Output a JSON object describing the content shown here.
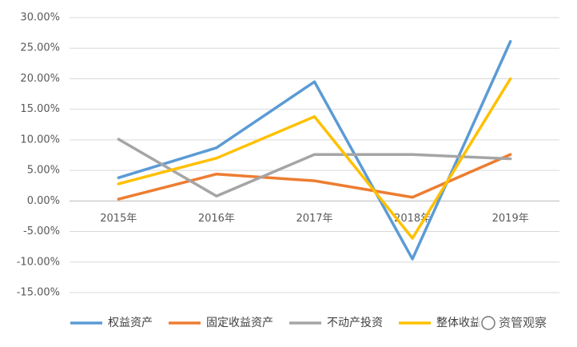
{
  "chart_data": {
    "type": "line",
    "categories": [
      "2015年",
      "2016年",
      "2017年",
      "2018年",
      "2019年"
    ],
    "series": [
      {
        "name": "权益资产",
        "color": "#5b9bd5",
        "values": [
          3.8,
          8.7,
          19.5,
          -9.5,
          26.1
        ]
      },
      {
        "name": "固定收益资产",
        "color": "#ed7d31",
        "values": [
          0.3,
          4.4,
          3.3,
          0.6,
          7.6
        ]
      },
      {
        "name": "不动产投资",
        "color": "#a5a5a5",
        "values": [
          10.1,
          0.8,
          7.6,
          7.6,
          6.9
        ]
      },
      {
        "name": "整体收益",
        "color": "#ffc000",
        "values": [
          2.8,
          7.0,
          13.8,
          -6.1,
          20.0
        ]
      }
    ],
    "ylim": [
      -15,
      30
    ],
    "yticks": [
      {
        "value": -15,
        "label": "-15.00%"
      },
      {
        "value": -10,
        "label": "-10.00%"
      },
      {
        "value": -5,
        "label": "-5.00%"
      },
      {
        "value": 0,
        "label": "0.00%"
      },
      {
        "value": 5,
        "label": "5.00%"
      },
      {
        "value": 10,
        "label": "10.00%"
      },
      {
        "value": 15,
        "label": "15.00%"
      },
      {
        "value": 20,
        "label": "20.00%"
      },
      {
        "value": 25,
        "label": "25.00%"
      },
      {
        "value": 30,
        "label": "30.00%"
      }
    ],
    "grid": true,
    "legend": "bottom",
    "watermark": "资管观察"
  }
}
